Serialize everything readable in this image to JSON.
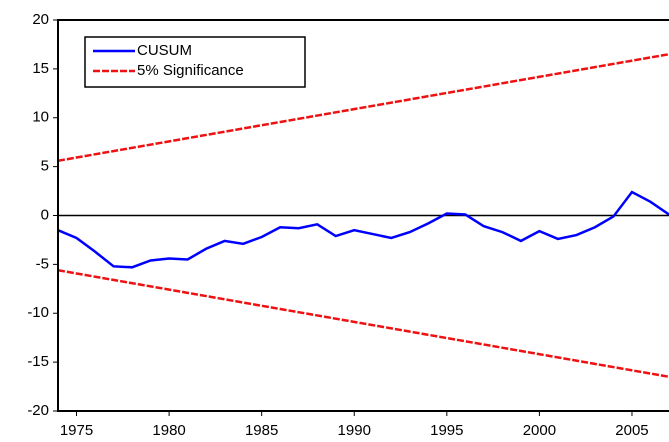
{
  "chart_data": {
    "type": "line",
    "x": [
      1974,
      1975,
      1976,
      1977,
      1978,
      1979,
      1980,
      1981,
      1982,
      1983,
      1984,
      1985,
      1986,
      1987,
      1988,
      1989,
      1990,
      1991,
      1992,
      1993,
      1994,
      1995,
      1996,
      1997,
      1998,
      1999,
      2000,
      2001,
      2002,
      2003,
      2004,
      2005,
      2006,
      2007
    ],
    "series": [
      {
        "name": "CUSUM",
        "color": "#0000ff",
        "values": [
          -1.5,
          -2.3,
          -3.7,
          -5.2,
          -5.3,
          -4.6,
          -4.4,
          -4.5,
          -3.4,
          -2.6,
          -2.9,
          -2.2,
          -1.2,
          -1.3,
          -0.9,
          -2.1,
          -1.5,
          -1.9,
          -2.3,
          -1.7,
          -0.8,
          0.2,
          0.1,
          -1.1,
          -1.7,
          -2.6,
          -1.6,
          -2.4,
          -2.0,
          -1.2,
          -0.1,
          2.4,
          1.4,
          0.1
        ]
      },
      {
        "name": "5% Significance",
        "color": "#ee1111",
        "dashed": true,
        "x": [
          1974,
          2007
        ],
        "values": [
          5.6,
          16.5
        ],
        "lower": [
          -5.6,
          -16.5
        ]
      }
    ],
    "xlim": [
      1974,
      2007
    ],
    "xticks": [
      1975,
      1980,
      1985,
      1990,
      1995,
      2000,
      2005
    ],
    "ylim": [
      -20,
      20
    ],
    "yticks": [
      -20,
      -15,
      -10,
      -5,
      0,
      5,
      10,
      15,
      20
    ],
    "zero_line": true,
    "legend": "upper-left"
  }
}
